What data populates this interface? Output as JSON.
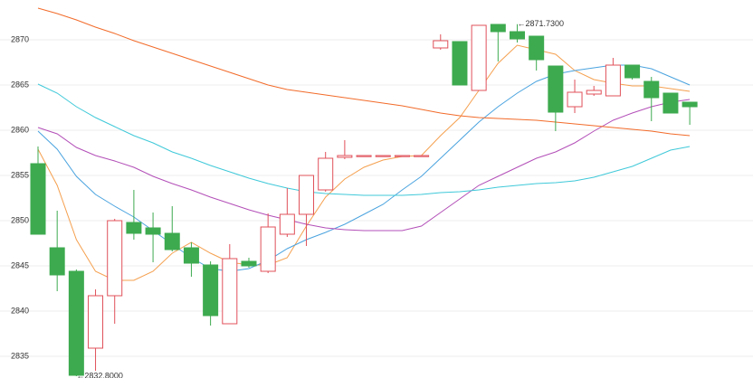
{
  "chart_data": {
    "type": "candlestick",
    "ylim": [
      2832.6,
      2874.4
    ],
    "yticks": [
      2835,
      2840,
      2845,
      2850,
      2855,
      2860,
      2865,
      2870
    ],
    "grid": true,
    "up_color": "#e0505a",
    "down_color": "#3daa4f",
    "candles": [
      {
        "open": 2856.3,
        "high": 2858.2,
        "low": 2848.5,
        "close": 2848.5
      },
      {
        "open": 2847.0,
        "high": 2851.1,
        "low": 2842.2,
        "close": 2844.0
      },
      {
        "open": 2844.4,
        "high": 2844.6,
        "low": 2832.8,
        "close": 2832.9
      },
      {
        "open": 2835.9,
        "high": 2842.4,
        "low": 2833.4,
        "close": 2841.7
      },
      {
        "open": 2841.7,
        "high": 2850.2,
        "low": 2838.6,
        "close": 2850.0
      },
      {
        "open": 2849.8,
        "high": 2853.4,
        "low": 2847.9,
        "close": 2848.6
      },
      {
        "open": 2849.2,
        "high": 2850.9,
        "low": 2845.4,
        "close": 2848.5
      },
      {
        "open": 2848.6,
        "high": 2851.6,
        "low": 2846.6,
        "close": 2846.8
      },
      {
        "open": 2847.0,
        "high": 2847.6,
        "low": 2843.8,
        "close": 2845.3
      },
      {
        "open": 2845.1,
        "high": 2845.5,
        "low": 2838.4,
        "close": 2839.5
      },
      {
        "open": 2838.6,
        "high": 2847.4,
        "low": 2838.6,
        "close": 2845.8
      },
      {
        "open": 2845.5,
        "high": 2845.9,
        "low": 2844.8,
        "close": 2845.0
      },
      {
        "open": 2844.4,
        "high": 2850.8,
        "low": 2844.2,
        "close": 2849.3
      },
      {
        "open": 2848.5,
        "high": 2853.6,
        "low": 2848.2,
        "close": 2850.7
      },
      {
        "open": 2850.7,
        "high": 2855.0,
        "low": 2847.2,
        "close": 2855.0
      },
      {
        "open": 2853.4,
        "high": 2857.6,
        "low": 2853.2,
        "close": 2856.9
      },
      {
        "open": 2857.0,
        "high": 2858.9,
        "low": 2856.8,
        "close": 2857.2
      },
      {
        "open": 2857.2,
        "high": 2857.2,
        "low": 2857.2,
        "close": 2857.2
      },
      {
        "open": 2857.2,
        "high": 2857.2,
        "low": 2857.2,
        "close": 2857.2
      },
      {
        "open": 2857.2,
        "high": 2857.2,
        "low": 2857.2,
        "close": 2857.2
      },
      {
        "open": 2857.2,
        "high": 2857.2,
        "low": 2857.2,
        "close": 2857.2
      },
      {
        "open": 2869.1,
        "high": 2870.6,
        "low": 2868.9,
        "close": 2869.9
      },
      {
        "open": 2869.8,
        "high": 2869.8,
        "low": 2865.0,
        "close": 2865.0
      },
      {
        "open": 2864.4,
        "high": 2871.6,
        "low": 2864.4,
        "close": 2871.6
      },
      {
        "open": 2871.7,
        "high": 2871.7,
        "low": 2867.6,
        "close": 2870.9
      },
      {
        "open": 2870.9,
        "high": 2871.73,
        "low": 2869.7,
        "close": 2870.1
      },
      {
        "open": 2870.4,
        "high": 2870.4,
        "low": 2866.6,
        "close": 2867.8
      },
      {
        "open": 2867.1,
        "high": 2867.1,
        "low": 2859.9,
        "close": 2862.0
      },
      {
        "open": 2862.6,
        "high": 2865.6,
        "low": 2861.9,
        "close": 2864.2
      },
      {
        "open": 2864.0,
        "high": 2864.9,
        "low": 2863.8,
        "close": 2864.4
      },
      {
        "open": 2863.8,
        "high": 2868.0,
        "low": 2863.8,
        "close": 2867.2
      },
      {
        "open": 2867.2,
        "high": 2867.2,
        "low": 2865.6,
        "close": 2865.8
      },
      {
        "open": 2865.4,
        "high": 2865.9,
        "low": 2861.0,
        "close": 2863.6
      },
      {
        "open": 2864.1,
        "high": 2864.1,
        "low": 2861.9,
        "close": 2861.9
      },
      {
        "open": 2863.1,
        "high": 2863.1,
        "low": 2860.6,
        "close": 2862.6
      }
    ],
    "series": [
      {
        "color": "#f5a04f",
        "values": [
          2857.9,
          2853.9,
          2847.9,
          2844.4,
          2843.4,
          2843.4,
          2844.4,
          2846.4,
          2847.6,
          2846.4,
          2845.4,
          2845.1,
          2845.1,
          2845.9,
          2849.4,
          2852.6,
          2854.6,
          2855.9,
          2856.7,
          2857.1,
          2857.2,
          2859.4,
          2861.4,
          2864.4,
          2867.4,
          2869.4,
          2868.9,
          2868.4,
          2866.6,
          2865.6,
          2865.2,
          2864.9,
          2864.9,
          2864.6,
          2864.3
        ]
      },
      {
        "color": "#4aa3df",
        "values": [
          2859.9,
          2857.9,
          2854.9,
          2852.9,
          2851.6,
          2850.4,
          2848.9,
          2847.4,
          2845.9,
          2844.7,
          2844.4,
          2844.7,
          2845.6,
          2846.9,
          2847.9,
          2848.7,
          2849.6,
          2850.7,
          2851.8,
          2853.4,
          2854.9,
          2856.9,
          2858.9,
          2860.9,
          2862.6,
          2864.1,
          2865.4,
          2866.2,
          2866.6,
          2866.9,
          2867.2,
          2867.2,
          2866.8,
          2865.9,
          2865.0
        ]
      },
      {
        "color": "#b34fb8",
        "values": [
          2860.3,
          2859.6,
          2858.1,
          2857.2,
          2856.6,
          2855.9,
          2854.9,
          2854.1,
          2853.4,
          2852.6,
          2851.9,
          2851.2,
          2850.6,
          2850.1,
          2849.6,
          2849.2,
          2849.0,
          2848.9,
          2848.9,
          2848.9,
          2849.4,
          2850.9,
          2852.4,
          2853.9,
          2854.9,
          2855.9,
          2856.9,
          2857.6,
          2858.6,
          2859.9,
          2861.1,
          2861.9,
          2862.6,
          2863.1,
          2863.4
        ]
      },
      {
        "color": "#3fc9d9",
        "values": [
          2865.1,
          2864.1,
          2862.6,
          2861.4,
          2860.4,
          2859.4,
          2858.6,
          2857.6,
          2856.9,
          2856.1,
          2855.4,
          2854.7,
          2854.1,
          2853.6,
          2853.2,
          2853.0,
          2852.9,
          2852.8,
          2852.8,
          2852.8,
          2852.9,
          2853.1,
          2853.2,
          2853.4,
          2853.7,
          2853.9,
          2854.1,
          2854.2,
          2854.4,
          2854.8,
          2855.4,
          2856.0,
          2856.9,
          2857.8,
          2858.2
        ]
      },
      {
        "color": "#f26b2a",
        "values": [
          2873.5,
          2872.9,
          2872.2,
          2871.4,
          2870.7,
          2869.9,
          2869.2,
          2868.5,
          2867.8,
          2867.1,
          2866.4,
          2865.7,
          2865.0,
          2864.5,
          2864.2,
          2863.9,
          2863.6,
          2863.3,
          2863.0,
          2862.7,
          2862.3,
          2861.9,
          2861.6,
          2861.4,
          2861.3,
          2861.2,
          2861.1,
          2860.9,
          2860.7,
          2860.5,
          2860.3,
          2860.1,
          2859.9,
          2859.6,
          2859.4
        ]
      }
    ],
    "annotations": [
      {
        "text": "←2871.7300",
        "value": 2871.73
      },
      {
        "text": "←2832.8000",
        "value": 2832.8
      }
    ]
  }
}
